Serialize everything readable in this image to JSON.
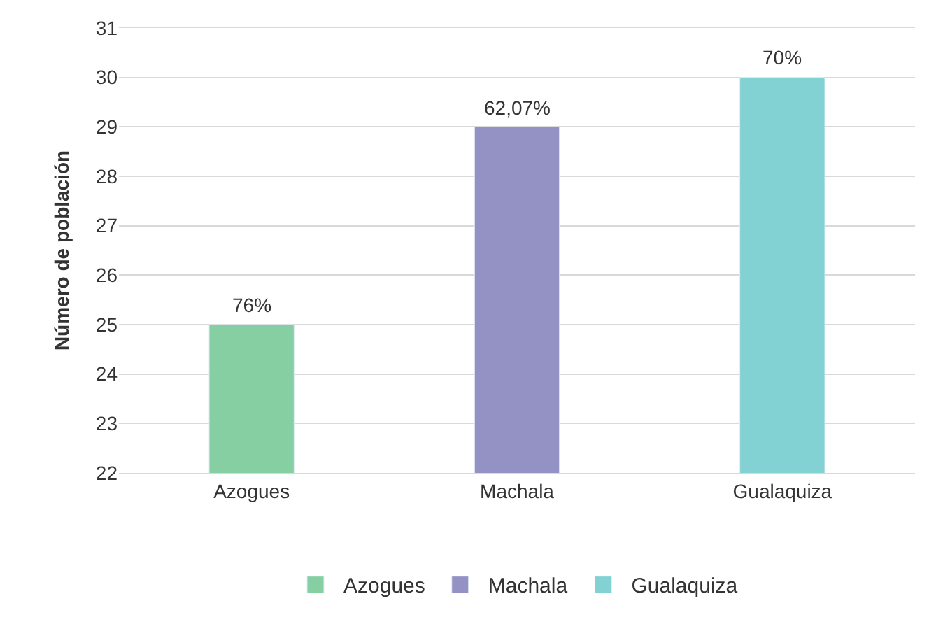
{
  "chart_data": {
    "type": "bar",
    "ylabel": "Número de población",
    "categories": [
      "Azogues",
      "Machala",
      "Gualaquiza"
    ],
    "series": [
      {
        "name": "Azogues",
        "color": "#86cfa3",
        "values": [
          25,
          null,
          null
        ]
      },
      {
        "name": "Machala",
        "color": "#9491c4",
        "values": [
          null,
          29,
          null
        ]
      },
      {
        "name": "Gualaquiza",
        "color": "#82d1d3",
        "values": [
          null,
          null,
          30
        ]
      }
    ],
    "annotations": [
      {
        "text": "76%",
        "x": "Azogues",
        "y": 25
      },
      {
        "text": "62,07%",
        "x": "Machala",
        "y": 29
      },
      {
        "text": "70%",
        "x": "Gualaquiza",
        "y": 30
      }
    ],
    "ylim": [
      22,
      31
    ],
    "yticks": [
      22,
      23,
      24,
      25,
      26,
      27,
      28,
      29,
      30,
      31
    ],
    "grid": "y",
    "legend": "bottom"
  }
}
